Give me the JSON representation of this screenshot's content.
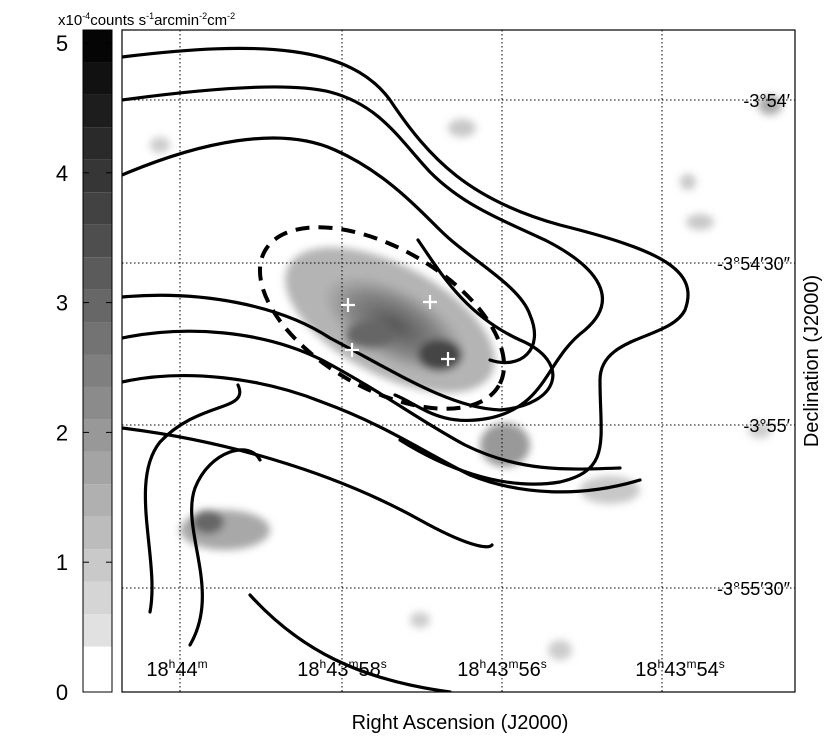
{
  "chart_data": {
    "type": "image",
    "xlabel": "Right Ascension (J2000)",
    "ylabel": "Declination (J2000)",
    "colorbar": {
      "label": [
        "x10",
        "-4",
        "counts s",
        "-1",
        "arcmin",
        "-2",
        "cm",
        "-2"
      ],
      "ylim": [
        0,
        5.1
      ],
      "yticks": [
        0,
        1,
        2,
        3,
        4,
        5
      ],
      "bins": [
        0,
        0.35,
        0.6,
        0.85,
        1.1,
        1.35,
        1.6,
        1.85,
        2.1,
        2.35,
        2.6,
        2.85,
        3.1,
        3.35,
        3.6,
        3.85,
        4.1,
        4.35,
        4.6,
        4.85,
        5.1
      ]
    },
    "ra_ticks": [
      [
        "18",
        "h",
        "44",
        "m"
      ],
      [
        "18",
        "h",
        "43",
        "m",
        "58",
        "s"
      ],
      [
        "18",
        "h",
        "43",
        "m",
        "56",
        "s"
      ],
      [
        "18",
        "h",
        "43",
        "m",
        "54",
        "s"
      ]
    ],
    "dec_ticks": [
      "-3°54′",
      "-3°54′30″",
      "-3°55′",
      "-3°55′30″"
    ],
    "grid": true
  }
}
